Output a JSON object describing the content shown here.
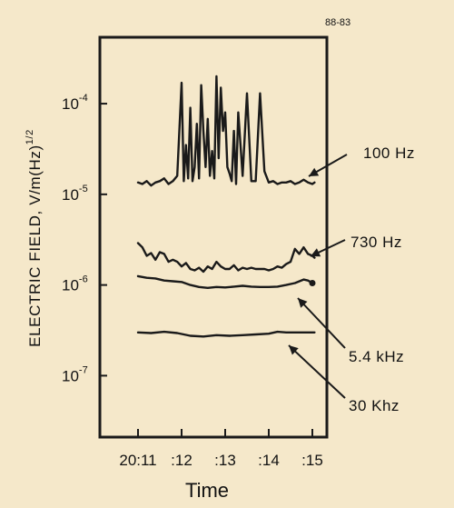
{
  "figure_id": "88-83",
  "chart_data": {
    "type": "line",
    "title": "",
    "xlabel": "Time",
    "ylabel": "ELECTRIC FIELD, V/m(Hz)",
    "ylabel_exponent": "1/2",
    "y_scale": "log",
    "ylim": [
      2.1e-08,
      0.00054
    ],
    "xlim": [
      0,
      4.1
    ],
    "x_ticks": [
      {
        "x": 0,
        "label": "20:11"
      },
      {
        "x": 1,
        "label": ":12"
      },
      {
        "x": 2,
        "label": ":13"
      },
      {
        "x": 3,
        "label": ":14"
      },
      {
        "x": 4,
        "label": ":15"
      }
    ],
    "y_ticks": [
      {
        "value": 0.0001,
        "base": "10",
        "exp": "-4"
      },
      {
        "value": 1e-05,
        "base": "10",
        "exp": "-5"
      },
      {
        "value": 1e-06,
        "base": "10",
        "exp": "-6"
      },
      {
        "value": 1e-07,
        "base": "10",
        "exp": "-7"
      }
    ],
    "grid": false,
    "series": [
      {
        "name": "100 Hz",
        "x": [
          0.0,
          0.1,
          0.2,
          0.3,
          0.4,
          0.5,
          0.6,
          0.7,
          0.8,
          0.9,
          1.0,
          1.05,
          1.1,
          1.15,
          1.2,
          1.25,
          1.3,
          1.35,
          1.4,
          1.45,
          1.5,
          1.55,
          1.6,
          1.65,
          1.7,
          1.75,
          1.8,
          1.85,
          1.9,
          1.95,
          2.0,
          2.05,
          2.1,
          2.15,
          2.2,
          2.25,
          2.3,
          2.4,
          2.5,
          2.6,
          2.7,
          2.8,
          2.9,
          3.0,
          3.1,
          3.2,
          3.3,
          3.4,
          3.5,
          3.6,
          3.7,
          3.8,
          3.9,
          4.0,
          4.05
        ],
        "y": [
          1.35e-05,
          1.3e-05,
          1.4e-05,
          1.25e-05,
          1.35e-05,
          1.4e-05,
          1.5e-05,
          1.3e-05,
          1.4e-05,
          1.6e-05,
          0.00017,
          1.4e-05,
          3.5e-05,
          1.5e-05,
          9e-05,
          1.4e-05,
          2e-05,
          6e-05,
          1.5e-05,
          0.00016,
          5e-05,
          2e-05,
          6.8e-05,
          1.6e-05,
          3e-05,
          1.5e-05,
          0.0002,
          2.5e-05,
          0.00015,
          5e-05,
          8e-05,
          2e-05,
          1.7e-05,
          1.4e-05,
          5e-05,
          1.3e-05,
          8e-05,
          1.6e-05,
          0.00013,
          1.4e-05,
          1.4e-05,
          0.00013,
          1.8e-05,
          1.35e-05,
          1.4e-05,
          1.3e-05,
          1.35e-05,
          1.35e-05,
          1.4e-05,
          1.3e-05,
          1.35e-05,
          1.45e-05,
          1.35e-05,
          1.3e-05,
          1.35e-05
        ]
      },
      {
        "name": "730 Hz",
        "x": [
          0.0,
          0.1,
          0.2,
          0.3,
          0.4,
          0.5,
          0.6,
          0.7,
          0.8,
          0.9,
          1.0,
          1.1,
          1.2,
          1.3,
          1.4,
          1.5,
          1.6,
          1.7,
          1.8,
          1.9,
          2.0,
          2.1,
          2.2,
          2.3,
          2.4,
          2.5,
          2.6,
          2.7,
          2.8,
          2.9,
          3.0,
          3.1,
          3.2,
          3.3,
          3.4,
          3.5,
          3.6,
          3.7,
          3.8,
          3.9,
          4.0,
          4.05
        ],
        "y": [
          2.9e-06,
          2.6e-06,
          2.1e-06,
          2.25e-06,
          1.9e-06,
          2.3e-06,
          2.2e-06,
          1.8e-06,
          1.9e-06,
          1.8e-06,
          1.6e-06,
          1.75e-06,
          1.5e-06,
          1.45e-06,
          1.55e-06,
          1.4e-06,
          1.6e-06,
          1.5e-06,
          1.8e-06,
          1.6e-06,
          1.5e-06,
          1.5e-06,
          1.65e-06,
          1.45e-06,
          1.55e-06,
          1.5e-06,
          1.55e-06,
          1.5e-06,
          1.5e-06,
          1.5e-06,
          1.45e-06,
          1.5e-06,
          1.6e-06,
          1.55e-06,
          1.7e-06,
          1.8e-06,
          2.5e-06,
          2.2e-06,
          2.6e-06,
          2.2e-06,
          2.1e-06,
          2e-06
        ]
      },
      {
        "name": "5.4 kHz",
        "x": [
          0.0,
          0.2,
          0.4,
          0.6,
          0.8,
          1.0,
          1.2,
          1.4,
          1.6,
          1.8,
          2.0,
          2.2,
          2.4,
          2.6,
          2.8,
          3.0,
          3.2,
          3.4,
          3.6,
          3.8,
          3.9,
          4.0
        ],
        "y": [
          1.25e-06,
          1.2e-06,
          1.18e-06,
          1.12e-06,
          1.1e-06,
          1.08e-06,
          1e-06,
          9.5e-07,
          9.3e-07,
          9.5e-07,
          9.4e-07,
          9.6e-07,
          9.8e-07,
          9.6e-07,
          9.5e-07,
          9.5e-07,
          9.6e-07,
          1e-06,
          1.05e-06,
          1.15e-06,
          1.12e-06,
          1.05e-06
        ]
      },
      {
        "name": "30 Khz",
        "x": [
          0.0,
          0.3,
          0.6,
          0.9,
          1.2,
          1.5,
          1.8,
          2.1,
          2.4,
          2.7,
          3.0,
          3.2,
          3.4,
          3.6,
          3.8,
          4.05
        ],
        "y": [
          3e-07,
          2.95e-07,
          3.05e-07,
          2.95e-07,
          2.75e-07,
          2.7e-07,
          2.8e-07,
          2.75e-07,
          2.8e-07,
          2.85e-07,
          2.9e-07,
          3.05e-07,
          3e-07,
          3e-07,
          3e-07,
          3e-07
        ]
      }
    ]
  }
}
